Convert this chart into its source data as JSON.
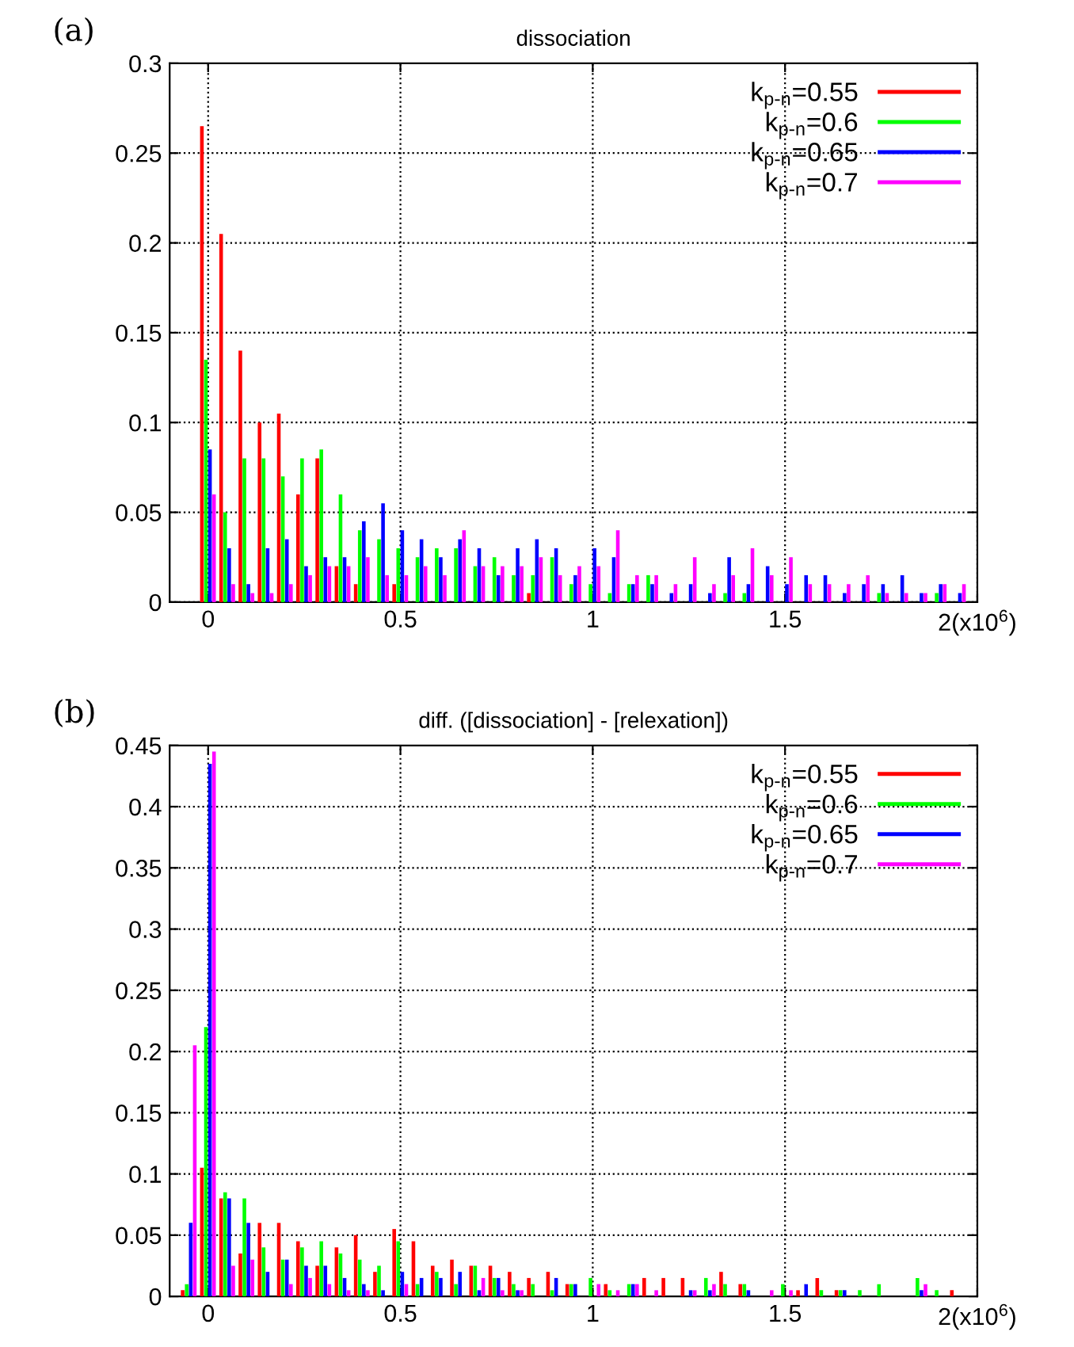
{
  "chart_data": [
    {
      "type": "bar",
      "title": "dissociation",
      "annotations": [
        "(a)"
      ],
      "x": [
        0,
        0.05,
        0.1,
        0.15,
        0.2,
        0.25,
        0.3,
        0.35,
        0.4,
        0.45,
        0.5,
        0.55,
        0.6,
        0.65,
        0.7,
        0.75,
        0.8,
        0.85,
        0.9,
        0.95,
        1.0,
        1.05,
        1.1,
        1.15,
        1.2,
        1.25,
        1.3,
        1.35,
        1.4,
        1.45,
        1.5,
        1.55,
        1.6,
        1.65,
        1.7,
        1.75,
        1.8,
        1.85,
        1.9,
        1.95
      ],
      "series": [
        {
          "name": "k$_{p-n}$=0.55",
          "color": "#ff0000",
          "values": [
            0.265,
            0.205,
            0.14,
            0.1,
            0.105,
            0.06,
            0.08,
            0.02,
            0.01,
            null,
            0.01,
            null,
            null,
            null,
            null,
            null,
            null,
            0.005,
            null,
            null,
            null,
            null,
            null,
            null,
            null,
            null,
            null,
            null,
            null,
            null,
            null,
            null,
            null,
            null,
            null,
            null,
            null,
            null,
            null,
            null
          ]
        },
        {
          "name": "k$_{p-n}$=0.6",
          "color": "#00ff00",
          "values": [
            0.135,
            0.05,
            0.08,
            0.08,
            0.07,
            0.08,
            0.085,
            0.06,
            0.04,
            0.035,
            0.03,
            0.025,
            0.03,
            0.03,
            0.02,
            0.025,
            0.015,
            0.015,
            0.025,
            0.01,
            0.01,
            0.005,
            0.01,
            0.015,
            null,
            null,
            null,
            0.005,
            0.005,
            null,
            null,
            null,
            null,
            null,
            null,
            0.005,
            null,
            null,
            0.005,
            null
          ]
        },
        {
          "name": "k$_{p-n}$=0.65",
          "color": "#0000ff",
          "values": [
            0.085,
            0.03,
            0.01,
            0.03,
            0.035,
            0.02,
            0.025,
            0.025,
            0.045,
            0.055,
            0.04,
            0.035,
            0.025,
            0.035,
            0.03,
            0.015,
            0.03,
            0.035,
            0.03,
            0.015,
            0.03,
            0.025,
            0.01,
            0.01,
            0.005,
            0.01,
            0.005,
            0.025,
            0.01,
            0.02,
            0.01,
            0.015,
            0.015,
            0.005,
            0.01,
            0.01,
            0.015,
            0.005,
            0.01,
            0.005
          ]
        },
        {
          "name": "k$_{p-n}$=0.7",
          "color": "#ff00ff",
          "values": [
            0.06,
            0.01,
            0.005,
            0.005,
            0.01,
            0.015,
            0.02,
            0.02,
            0.025,
            0.015,
            0.015,
            0.02,
            0.015,
            0.04,
            0.02,
            0.02,
            0.02,
            0.025,
            0.015,
            0.02,
            0.02,
            0.04,
            0.015,
            0.015,
            0.01,
            0.025,
            0.01,
            0.015,
            0.03,
            0.015,
            0.025,
            0.01,
            0.01,
            0.01,
            0.015,
            0.005,
            0.005,
            0.005,
            0.01,
            0.01
          ]
        }
      ],
      "xlim": [
        -0.1,
        2.0
      ],
      "ylim": [
        0,
        0.3
      ],
      "xticks": [
        0,
        0.5,
        1,
        1.5,
        {
          "value": 2,
          "label": "2(x10$^{6}$)"
        }
      ],
      "yticks": [
        0,
        0.05,
        0.1,
        0.15,
        0.2,
        0.25,
        0.3
      ],
      "grid": true,
      "legend": "top right"
    },
    {
      "type": "bar",
      "title": "diff. ([dissociation] - [relexation])",
      "annotations": [
        "(b)"
      ],
      "x": [
        -0.05,
        0,
        0.05,
        0.1,
        0.15,
        0.2,
        0.25,
        0.3,
        0.35,
        0.4,
        0.45,
        0.5,
        0.55,
        0.6,
        0.65,
        0.7,
        0.75,
        0.8,
        0.85,
        0.9,
        0.95,
        1.0,
        1.05,
        1.1,
        1.15,
        1.2,
        1.25,
        1.3,
        1.35,
        1.4,
        1.45,
        1.5,
        1.55,
        1.6,
        1.65,
        1.7,
        1.75,
        1.8,
        1.85,
        1.9,
        1.95
      ],
      "series": [
        {
          "name": "k$_{p-n}$=0.55",
          "color": "#ff0000",
          "values": [
            0.005,
            0.105,
            0.08,
            0.035,
            0.06,
            0.06,
            0.045,
            0.025,
            0.04,
            0.05,
            0.02,
            0.055,
            0.045,
            0.025,
            0.03,
            0.025,
            0.025,
            0.02,
            0.015,
            0.02,
            0.01,
            null,
            0.01,
            null,
            0.015,
            0.015,
            0.015,
            null,
            0.02,
            0.01,
            null,
            null,
            0.005,
            0.015,
            0.005,
            null,
            null,
            null,
            null,
            null,
            0.005
          ]
        },
        {
          "name": "k$_{p-n}$=0.6",
          "color": "#00ff00",
          "values": [
            0.01,
            0.22,
            0.085,
            0.08,
            0.04,
            0.03,
            0.04,
            0.045,
            0.035,
            0.03,
            0.025,
            0.045,
            0.01,
            0.02,
            0.01,
            0.025,
            0.015,
            0.01,
            0.01,
            0.005,
            0.01,
            0.015,
            0.005,
            0.01,
            null,
            null,
            null,
            0.015,
            0.01,
            0.01,
            null,
            0.01,
            null,
            0.005,
            0.005,
            0.005,
            0.01,
            null,
            0.015,
            0.005,
            null
          ]
        },
        {
          "name": "k$_{p-n}$=0.65",
          "color": "#0000ff",
          "values": [
            0.06,
            0.435,
            0.08,
            0.06,
            0.02,
            0.03,
            0.025,
            0.025,
            0.015,
            0.01,
            0.005,
            0.02,
            0.015,
            0.015,
            0.02,
            0.005,
            0.015,
            0.005,
            null,
            0.015,
            0.01,
            null,
            null,
            0.01,
            null,
            null,
            0.005,
            0.005,
            null,
            0.005,
            null,
            null,
            0.01,
            null,
            0.005,
            null,
            null,
            null,
            0.005,
            null,
            null
          ]
        },
        {
          "name": "k$_{p-n}$=0.7",
          "color": "#ff00ff",
          "values": [
            0.205,
            0.445,
            0.025,
            0.03,
            null,
            0.01,
            0.015,
            0.01,
            0.005,
            0.005,
            null,
            0.01,
            null,
            null,
            null,
            0.015,
            0.005,
            0.005,
            null,
            null,
            null,
            0.01,
            0.005,
            0.01,
            0.005,
            null,
            0.005,
            0.01,
            null,
            null,
            0.005,
            0.005,
            null,
            null,
            null,
            null,
            null,
            null,
            0.01,
            null,
            null
          ]
        }
      ],
      "xlim": [
        -0.1,
        2.0
      ],
      "ylim": [
        0,
        0.45
      ],
      "xticks": [
        0,
        0.5,
        1,
        1.5,
        {
          "value": 2,
          "label": "2(x10$^{6}$)"
        }
      ],
      "yticks": [
        0,
        0.05,
        0.1,
        0.15,
        0.2,
        0.25,
        0.3,
        0.35,
        0.4,
        0.45
      ],
      "grid": true,
      "legend": "top right"
    }
  ]
}
